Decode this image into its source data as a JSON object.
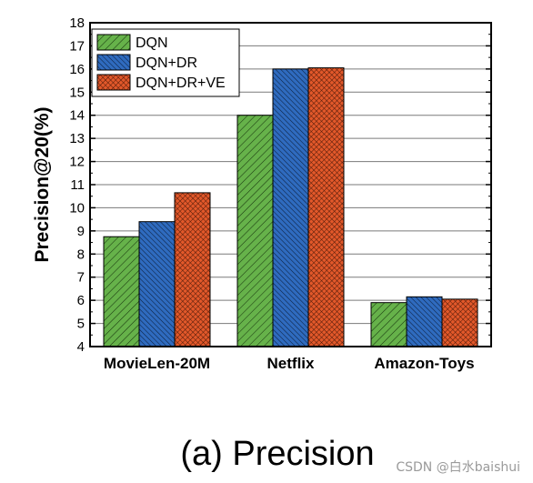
{
  "chart_data": {
    "type": "bar",
    "ylabel": "Precision@20(%)",
    "ylim": [
      4,
      18
    ],
    "yticks": [
      "4",
      "5",
      "6",
      "7",
      "8",
      "9",
      "10",
      "11",
      "12",
      "13",
      "14",
      "15",
      "16",
      "17",
      "18"
    ],
    "grid": true,
    "legend_position": "top-left",
    "categories": [
      "MovieLen-20M",
      "Netflix",
      "Amazon-Toys"
    ],
    "series": [
      {
        "name": "DQN",
        "color": "#66b24a",
        "pattern": "diagonal-hatch",
        "values": [
          8.75,
          14.0,
          5.9
        ]
      },
      {
        "name": "DQN+DR",
        "color": "#2f6bbf",
        "pattern": "dense-diagonal-hatch",
        "values": [
          9.4,
          16.0,
          6.15
        ]
      },
      {
        "name": "DQN+DR+VE",
        "color": "#e2582a",
        "pattern": "cross-hatch",
        "values": [
          10.65,
          16.05,
          6.05
        ]
      }
    ]
  },
  "caption": "(a) Precision",
  "watermark": "CSDN @白水baishui"
}
